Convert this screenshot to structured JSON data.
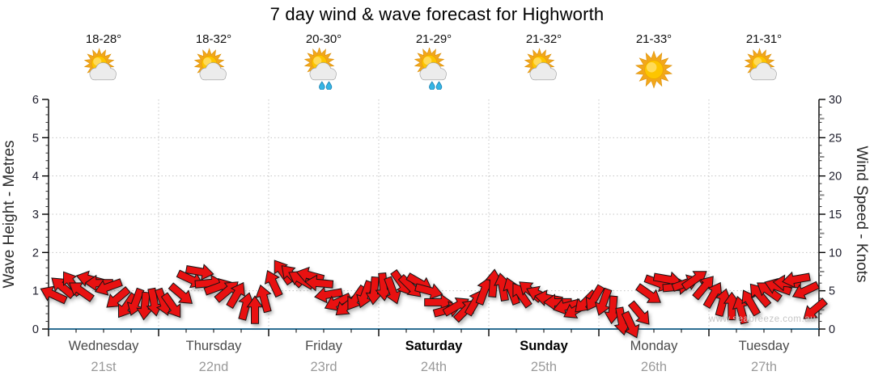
{
  "header": {
    "title": "7 day wind & wave forecast for Highworth"
  },
  "watermark": "www.seabreeze.com.au",
  "forecast": {
    "days": [
      {
        "name": "Wednesday",
        "date": "21st",
        "temp": "18-28°",
        "icon": "partly-cloudy",
        "weekend": false
      },
      {
        "name": "Thursday",
        "date": "22nd",
        "temp": "18-32°",
        "icon": "partly-cloudy",
        "weekend": false
      },
      {
        "name": "Friday",
        "date": "23rd",
        "temp": "20-30°",
        "icon": "showers",
        "weekend": false
      },
      {
        "name": "Saturday",
        "date": "24th",
        "temp": "21-29°",
        "icon": "showers",
        "weekend": true
      },
      {
        "name": "Sunday",
        "date": "25th",
        "temp": "21-32°",
        "icon": "partly-cloudy",
        "weekend": true
      },
      {
        "name": "Monday",
        "date": "26th",
        "temp": "21-33°",
        "icon": "sunny",
        "weekend": false
      },
      {
        "name": "Tuesday",
        "date": "27th",
        "temp": "21-31°",
        "icon": "partly-cloudy",
        "weekend": false
      }
    ]
  },
  "chart_data": {
    "type": "scatter",
    "marker": "wind-direction-arrow",
    "title": "7 day wind & wave forecast for Highworth",
    "x_categories": [
      "Wednesday 21st",
      "Thursday 22nd",
      "Friday 23rd",
      "Saturday 24th",
      "Sunday 25th",
      "Monday 26th",
      "Tuesday 27th"
    ],
    "points_per_day": 12,
    "grid": true,
    "y_left": {
      "label": "Wave Height - Metres",
      "range": [
        0,
        6
      ],
      "ticks": [
        0,
        1,
        2,
        3,
        4,
        5,
        6
      ],
      "minor_step": 0.2
    },
    "y_right": {
      "label": "Wind Speed - Knots",
      "range": [
        0,
        30
      ],
      "ticks": [
        0,
        5,
        10,
        15,
        20,
        25,
        30
      ],
      "minor_step": 1
    },
    "series": [
      {
        "name": "Wind speed and direction",
        "unit": "knots",
        "knots": [
          4.5,
          5.5,
          6,
          5,
          6.5,
          6,
          5.5,
          4,
          3,
          3.5,
          3,
          3.5,
          3.5,
          3,
          4.5,
          6.5,
          7.5,
          6,
          5.5,
          5,
          4.5,
          3,
          2.5,
          4,
          6,
          7.5,
          7,
          6.5,
          7,
          6,
          4.5,
          3.5,
          3,
          4,
          4.5,
          5,
          5.5,
          5,
          6,
          5.5,
          6,
          5,
          3.5,
          2.5,
          3,
          2.5,
          3.5,
          5,
          6,
          5.5,
          5,
          4.5,
          5,
          4.5,
          4,
          3.5,
          3,
          2.5,
          3.5,
          4,
          3.5,
          2.5,
          1,
          0.5,
          2,
          4.5,
          6,
          6.5,
          5.5,
          6,
          6.5,
          5.5,
          4.5,
          3.5,
          3,
          2.5,
          3.5,
          4.5,
          5,
          5.5,
          6,
          6.5,
          5,
          2.5
        ],
        "dir_deg": [
          205,
          220,
          235,
          215,
          195,
          180,
          160,
          140,
          125,
          110,
          95,
          80,
          70,
          55,
          40,
          25,
          10,
          355,
          340,
          320,
          300,
          285,
          270,
          255,
          245,
          235,
          225,
          210,
          195,
          185,
          170,
          155,
          140,
          125,
          110,
          95,
          85,
          70,
          55,
          45,
          30,
          15,
          0,
          345,
          330,
          315,
          300,
          290,
          275,
          260,
          250,
          235,
          220,
          205,
          190,
          180,
          165,
          150,
          135,
          120,
          110,
          95,
          80,
          65,
          50,
          35,
          20,
          10,
          355,
          340,
          325,
          310,
          300,
          285,
          270,
          255,
          240,
          230,
          215,
          200,
          185,
          170,
          155,
          140
        ]
      }
    ],
    "colors": {
      "arrow": "#e81111",
      "arrow_outline": "#141414",
      "axis_x_line": "#2e6f93",
      "axis_y_line": "#000000",
      "grid": "#c4c4c4",
      "tick_label": "#1d1d2b",
      "axis_title": "#2b2b2b",
      "day_name": "#4a4a4a",
      "day_date": "#9a9a9a",
      "watermark": "#c6c6c6"
    }
  }
}
